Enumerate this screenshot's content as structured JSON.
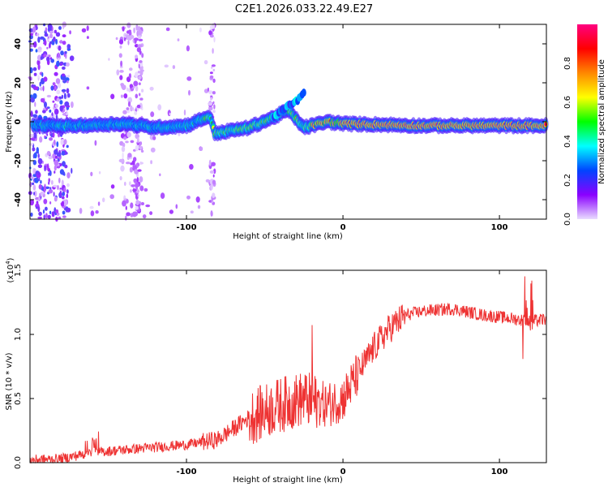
{
  "title": "C2E1.2026.033.22.49.E27",
  "chart_data": [
    {
      "type": "heatmap",
      "name": "spectrogram",
      "xlabel": "Height of straight line (km)",
      "ylabel": "Frequency (Hz)",
      "xlim": [
        -200,
        130
      ],
      "ylim": [
        -50,
        50
      ],
      "xticks": [
        -100,
        0,
        100
      ],
      "yticks": [
        -40,
        -20,
        0,
        20,
        40
      ],
      "colorbar": {
        "label": "Normalized spectral amplitude",
        "range": [
          0,
          1
        ],
        "ticks": [
          "0.0",
          "0.2",
          "0.4",
          "0.6",
          "0.8"
        ],
        "tick_values": [
          0,
          0.2,
          0.4,
          0.6,
          0.8
        ],
        "stops": [
          "#e9dcff",
          "#8a00ff",
          "#0044ff",
          "#00ffff",
          "#00ff00",
          "#ffff00",
          "#ff8800",
          "#ff0000",
          "#ff0080"
        ]
      },
      "ridge": {
        "description_points": [
          {
            "x": -200,
            "y": -2
          },
          {
            "x": -170,
            "y": -2
          },
          {
            "x": -140,
            "y": -1
          },
          {
            "x": -120,
            "y": -3
          },
          {
            "x": -100,
            "y": -2
          },
          {
            "x": -85,
            "y": 3
          },
          {
            "x": -82,
            "y": -6
          },
          {
            "x": -60,
            "y": -3
          },
          {
            "x": -45,
            "y": 2
          },
          {
            "x": -35,
            "y": 6
          },
          {
            "x": -25,
            "y": -3
          },
          {
            "x": -10,
            "y": 0
          },
          {
            "x": 0,
            "y": -1
          },
          {
            "x": 50,
            "y": -2
          },
          {
            "x": 90,
            "y": -2
          },
          {
            "x": 130,
            "y": -2
          }
        ]
      }
    },
    {
      "type": "line",
      "name": "snr",
      "xlabel": "Height of straight line (km)",
      "ylabel": "SNR (10 * v/v)",
      "scale_label": "(x10",
      "scale_exp": "4",
      "scale_close": ")",
      "xlim": [
        -200,
        130
      ],
      "ylim": [
        0,
        1.5
      ],
      "xticks": [
        -100,
        0,
        100
      ],
      "yticks": [
        "0.0",
        "0.5",
        "1.0",
        "1.5"
      ],
      "ytick_values": [
        0,
        0.5,
        1.0,
        1.5
      ],
      "color": "#ee3333",
      "envelope": [
        {
          "x": -200,
          "y": 0.02
        },
        {
          "x": -180,
          "y": 0.03
        },
        {
          "x": -160,
          "y": 0.08
        },
        {
          "x": -140,
          "y": 0.1
        },
        {
          "x": -120,
          "y": 0.12
        },
        {
          "x": -100,
          "y": 0.14
        },
        {
          "x": -80,
          "y": 0.18
        },
        {
          "x": -60,
          "y": 0.35
        },
        {
          "x": -40,
          "y": 0.45
        },
        {
          "x": -25,
          "y": 0.5
        },
        {
          "x": -10,
          "y": 0.45
        },
        {
          "x": 0,
          "y": 0.5
        },
        {
          "x": 10,
          "y": 0.7
        },
        {
          "x": 20,
          "y": 0.9
        },
        {
          "x": 30,
          "y": 1.05
        },
        {
          "x": 40,
          "y": 1.15
        },
        {
          "x": 50,
          "y": 1.18
        },
        {
          "x": 70,
          "y": 1.2
        },
        {
          "x": 90,
          "y": 1.15
        },
        {
          "x": 110,
          "y": 1.12
        },
        {
          "x": 120,
          "y": 1.1
        },
        {
          "x": 130,
          "y": 1.12
        }
      ]
    }
  ]
}
